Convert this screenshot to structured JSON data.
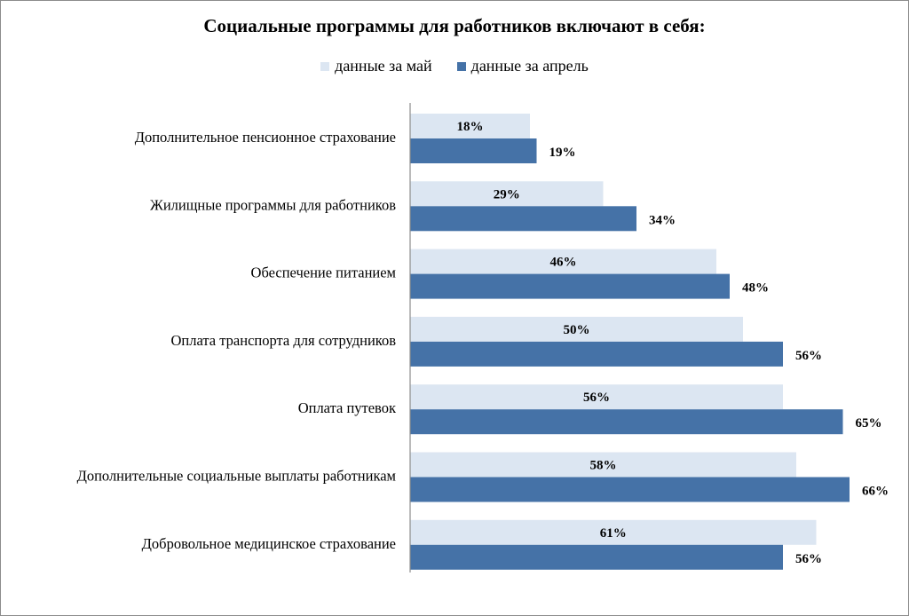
{
  "chart_data": {
    "type": "bar",
    "orientation": "horizontal",
    "title": "Социальные программы для работников включают в себя:",
    "categories": [
      "Дополнительное пенсионное страхование",
      "Жилищные программы для работников",
      "Обеспечение питанием",
      "Оплата транспорта для сотрудников",
      "Оплата путевок",
      "Дополнительные социальные выплаты работникам",
      "Добровольное медицинское страхование"
    ],
    "series": [
      {
        "name": "данные за май",
        "values": [
          18,
          29,
          46,
          50,
          56,
          58,
          61
        ],
        "color": "#dce6f2"
      },
      {
        "name": "данные за апрель",
        "values": [
          19,
          34,
          48,
          56,
          65,
          66,
          56
        ],
        "color": "#4572a7"
      }
    ],
    "value_suffix": "%",
    "xlim": [
      0,
      70
    ],
    "grid": false,
    "legend_position": "top"
  }
}
